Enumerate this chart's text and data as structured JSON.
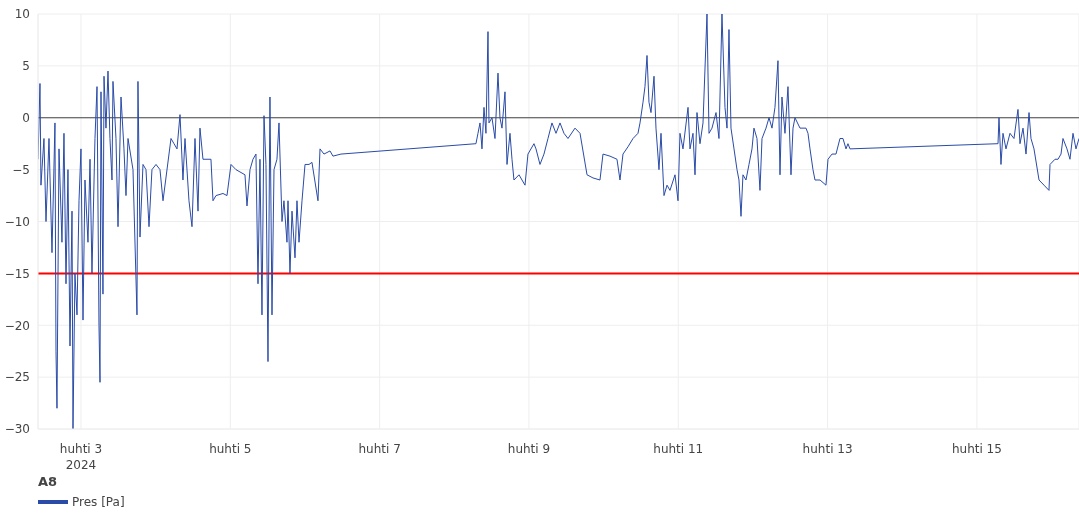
{
  "chart_data": {
    "type": "line",
    "legend_title": "A8",
    "legend": "bottom left",
    "grid": true,
    "marker": "none",
    "line_style": "solid",
    "xlim": [
      "2024-04-02T10:11",
      "2024-04-16T08:49"
    ],
    "xticks": [
      {
        "value": "2024-04-03",
        "label": "huhti 3\n2024"
      },
      {
        "value": "2024-04-05",
        "label": "huhti 5"
      },
      {
        "value": "2024-04-07",
        "label": "huhti 7"
      },
      {
        "value": "2024-04-09",
        "label": "huhti 9"
      },
      {
        "value": "2024-04-11",
        "label": "huhti 11"
      },
      {
        "value": "2024-04-13",
        "label": "huhti 13"
      },
      {
        "value": "2024-04-15",
        "label": "huhti 15"
      }
    ],
    "ylim": [
      -30,
      10
    ],
    "yticks": [
      -30,
      -25,
      -20,
      -15,
      -10,
      -5,
      0,
      5,
      10
    ],
    "ref_lines": [
      {
        "axis": "y",
        "value": 0,
        "color": "#444444"
      },
      {
        "axis": "y",
        "value": -15,
        "color": "#ff0000"
      }
    ],
    "series": [
      {
        "name": "Pres [Pa]",
        "color": "#2a4ba8",
        "x": [
          "2024-04-02T10:11",
          "2024-04-02T10:49",
          "2024-04-02T11:08",
          "2024-04-02T12:06",
          "2024-04-02T12:45",
          "2024-04-02T13:43",
          "2024-04-02T14:41",
          "2024-04-02T15:38",
          "2024-04-02T15:58",
          "2024-04-02T16:17",
          "2024-04-02T16:56",
          "2024-04-02T17:53",
          "2024-04-02T18:32",
          "2024-04-02T19:11",
          "2024-04-02T19:49",
          "2024-04-02T20:28",
          "2024-04-02T21:07",
          "2024-04-02T21:26",
          "2024-04-02T22:04",
          "2024-04-02T22:43",
          "2024-04-02T23:22",
          "2024-04-03T00:00",
          "2024-04-03T00:39",
          "2024-04-03T01:17",
          "2024-04-03T02:15",
          "2024-04-03T02:54",
          "2024-04-03T03:32",
          "2024-04-03T04:30",
          "2024-04-03T05:09",
          "2024-04-03T05:47",
          "2024-04-03T06:07",
          "2024-04-03T06:26",
          "2024-04-03T07:04",
          "2024-04-03T07:24",
          "2024-04-03T08:02",
          "2024-04-03T08:41",
          "2024-04-03T09:19",
          "2024-04-03T09:58",
          "2024-04-03T10:17",
          "2024-04-03T11:15",
          "2024-04-03T11:54",
          "2024-04-03T12:52",
          "2024-04-03T13:49",
          "2024-04-03T14:28",
          "2024-04-03T15:07",
          "2024-04-03T16:43",
          "2024-04-03T18:00",
          "2024-04-03T18:19",
          "2024-04-03T18:58",
          "2024-04-03T19:56",
          "2024-04-03T20:54",
          "2024-04-03T21:52",
          "2024-04-03T22:49",
          "2024-04-04T00:07",
          "2024-04-04T01:24",
          "2024-04-04T02:22",
          "2024-04-04T04:56",
          "2024-04-04T05:54",
          "2024-04-04T06:52",
          "2024-04-04T07:50",
          "2024-04-04T08:47",
          "2024-04-04T09:26",
          "2024-04-04T10:43",
          "2024-04-04T11:41",
          "2024-04-04T12:39",
          "2024-04-04T13:37",
          "2024-04-04T14:15",
          "2024-04-04T15:13",
          "2024-04-04T17:47",
          "2024-04-04T18:26",
          "2024-04-04T19:24",
          "2024-04-04T21:39",
          "2024-04-04T22:56",
          "2024-04-05T00:13",
          "2024-04-05T01:49",
          "2024-04-05T04:43",
          "2024-04-05T05:22",
          "2024-04-05T06:20",
          "2024-04-05T07:17",
          "2024-04-05T08:15",
          "2024-04-05T08:54",
          "2024-04-05T09:32",
          "2024-04-05T10:11",
          "2024-04-05T10:50",
          "2024-04-05T11:28",
          "2024-04-05T12:07",
          "2024-04-05T12:45",
          "2024-04-05T13:24",
          "2024-04-05T14:03",
          "2024-04-05T15:00",
          "2024-04-05T15:39",
          "2024-04-05T16:37",
          "2024-04-05T17:15",
          "2024-04-05T18:13",
          "2024-04-05T18:33",
          "2024-04-05T19:11",
          "2024-04-05T19:50",
          "2024-04-05T20:48",
          "2024-04-05T21:26",
          "2024-04-05T22:05",
          "2024-04-05T23:03",
          "2024-04-06T00:01",
          "2024-04-06T01:18",
          "2024-04-06T02:15",
          "2024-04-06T04:11",
          "2024-04-06T04:50",
          "2024-04-06T06:07",
          "2024-04-06T08:03",
          "2024-04-06T09:00",
          "2024-04-06T11:35",
          "2024-04-08T06:58",
          "2024-04-08T07:37",
          "2024-04-08T08:16",
          "2024-04-08T08:54",
          "2024-04-08T09:33",
          "2024-04-08T10:11",
          "2024-04-08T10:50",
          "2024-04-08T11:09",
          "2024-04-08T12:07",
          "2024-04-08T13:05",
          "2024-04-08T14:03",
          "2024-04-08T14:41",
          "2024-04-08T15:20",
          "2024-04-08T16:18",
          "2024-04-08T16:57",
          "2024-04-08T17:54",
          "2024-04-08T18:33",
          "2024-04-08T19:11",
          "2024-04-08T20:48",
          "2024-04-08T22:44",
          "2024-04-08T23:41",
          "2024-04-09T01:37",
          "2024-04-09T02:16",
          "2024-04-09T03:33",
          "2024-04-09T04:50",
          "2024-04-09T06:07",
          "2024-04-09T07:24",
          "2024-04-09T08:42",
          "2024-04-09T09:59",
          "2024-04-09T11:16",
          "2024-04-09T12:33",
          "2024-04-09T14:48",
          "2024-04-09T16:25",
          "2024-04-09T18:40",
          "2024-04-09T20:35",
          "2024-04-09T22:50",
          "2024-04-09T23:48",
          "2024-04-10T02:03",
          "2024-04-10T04:18",
          "2024-04-10T05:16",
          "2024-04-10T06:14",
          "2024-04-10T07:50",
          "2024-04-10T09:27",
          "2024-04-10T11:03",
          "2024-04-10T11:42",
          "2024-04-10T12:40",
          "2024-04-10T13:18",
          "2024-04-10T13:57",
          "2024-04-10T14:35",
          "2024-04-10T15:14",
          "2024-04-10T16:12",
          "2024-04-10T16:50",
          "2024-04-10T17:48",
          "2024-04-10T18:27",
          "2024-04-10T19:25",
          "2024-04-10T20:23",
          "2024-04-10T21:20",
          "2024-04-10T22:57",
          "2024-04-10T23:55",
          "2024-04-11T00:33",
          "2024-04-11T01:31",
          "2024-04-11T03:08",
          "2024-04-11T03:46",
          "2024-04-11T04:44",
          "2024-04-11T05:23",
          "2024-04-11T06:01",
          "2024-04-11T06:59",
          "2024-04-11T07:57",
          "2024-04-11T09:14",
          "2024-04-11T09:53",
          "2024-04-11T10:50",
          "2024-04-11T12:08",
          "2024-04-11T13:05",
          "2024-04-11T14:03",
          "2024-04-11T15:01",
          "2024-04-11T15:40",
          "2024-04-11T16:18",
          "2024-04-11T16:57",
          "2024-04-11T17:55",
          "2024-04-11T18:53",
          "2024-04-11T19:31",
          "2024-04-11T20:10",
          "2024-04-11T20:48",
          "2024-04-11T21:46",
          "2024-04-11T22:44",
          "2024-04-11T23:42",
          "2024-04-12T00:20",
          "2024-04-12T01:18",
          "2024-04-12T02:16",
          "2024-04-12T02:55",
          "2024-04-12T04:12",
          "2024-04-12T05:10",
          "2024-04-12T06:08",
          "2024-04-12T07:05",
          "2024-04-12T08:03",
          "2024-04-12T08:42",
          "2024-04-12T09:20",
          "2024-04-12T10:18",
          "2024-04-12T11:16",
          "2024-04-12T12:14",
          "2024-04-12T12:53",
          "2024-04-12T13:31",
          "2024-04-12T15:08",
          "2024-04-12T17:03",
          "2024-04-12T17:42",
          "2024-04-12T18:21",
          "2024-04-12T19:18",
          "2024-04-12T19:57",
          "2024-04-12T21:34",
          "2024-04-12T23:29",
          "2024-04-13T00:08",
          "2024-04-13T01:25",
          "2024-04-13T02:42",
          "2024-04-13T03:59",
          "2024-04-13T04:57",
          "2024-04-13T05:55",
          "2024-04-13T06:33",
          "2024-04-13T07:12",
          "2024-04-15T06:47",
          "2024-04-15T07:06",
          "2024-04-15T07:44",
          "2024-04-15T08:23",
          "2024-04-15T09:21",
          "2024-04-15T10:38",
          "2024-04-15T11:55",
          "2024-04-15T13:12",
          "2024-04-15T13:51",
          "2024-04-15T14:49",
          "2024-04-15T15:47",
          "2024-04-15T16:45",
          "2024-04-15T17:23",
          "2024-04-15T18:21",
          "2024-04-15T19:58",
          "2024-04-15T21:34",
          "2024-04-15T23:10",
          "2024-04-15T23:30",
          "2024-04-16T01:06",
          "2024-04-16T02:04",
          "2024-04-16T03:02",
          "2024-04-16T03:40",
          "2024-04-16T04:57",
          "2024-04-16T05:55",
          "2024-04-16T06:53",
          "2024-04-16T07:51",
          "2024-04-16T08:49"
        ],
        "values": [
          -4,
          3.3,
          -6.5,
          -2,
          -10,
          -2,
          -13,
          -0.5,
          -22.5,
          -28,
          -3,
          -12,
          -1.5,
          -16,
          -5,
          -22,
          -9,
          -30,
          -15,
          -19,
          -8,
          -3,
          -19.5,
          -6,
          -12,
          -4,
          -15,
          -2,
          3,
          -20,
          -25.5,
          2.5,
          -17,
          4,
          -1,
          4.5,
          -2,
          -6,
          3.5,
          -2,
          -10.5,
          2,
          -3,
          -7.5,
          -2,
          -5,
          -19,
          3.5,
          -11.5,
          -4.5,
          -5,
          -10.5,
          -5,
          -4.5,
          -5,
          -8,
          -2,
          -2.5,
          -3,
          0.3,
          -6,
          -2,
          -8,
          -10.5,
          -2,
          -9,
          -1,
          -4,
          -4,
          -8,
          -7.5,
          -7.3,
          -7.5,
          -4.5,
          -5,
          -5.5,
          -8.5,
          -5,
          -4,
          -3.5,
          -16,
          -4,
          -19,
          0.2,
          -4.5,
          -23.5,
          2,
          -19,
          -5,
          -4,
          -0.5,
          -10,
          -8,
          -12,
          -8,
          -15,
          -9,
          -13.5,
          -8,
          -12,
          -8,
          -4.5,
          -4.5,
          -4.3,
          -8,
          -3,
          -3.5,
          -3.2,
          -3.7,
          -3.5,
          -2.5,
          -1.5,
          -0.5,
          -3,
          1,
          -1.5,
          8.3,
          -0.5,
          0,
          -2,
          4.3,
          0,
          -1,
          2.5,
          -4.5,
          -1.5,
          -4,
          -6,
          -5.5,
          -6.5,
          -3.5,
          -2.5,
          -3,
          -4.5,
          -3.5,
          -2,
          -0.5,
          -1.5,
          -0.5,
          -1.5,
          -2,
          -1,
          -1.5,
          -5.5,
          -5.8,
          -6,
          -3.5,
          -3.7,
          -4,
          -6,
          -3.5,
          -2.8,
          -2,
          -1.5,
          -0.5,
          1.5,
          3,
          6,
          1.5,
          0.5,
          4,
          -1,
          -5,
          -1.5,
          -7.5,
          -6.5,
          -7,
          -5.5,
          -8,
          -1.5,
          -3,
          1,
          -3,
          -1.5,
          -5.5,
          0.5,
          -2.5,
          -0.5,
          10,
          -1.5,
          -1,
          0.5,
          -2,
          10,
          1,
          -1,
          8.5,
          -1,
          -3,
          -5,
          -6,
          -9.5,
          -5.5,
          -6,
          -4.5,
          -3,
          -1,
          -2,
          -7,
          -2,
          -1,
          0,
          -1,
          1,
          5.5,
          -5.5,
          2,
          -1.5,
          3,
          -5.5,
          -1,
          0,
          -1,
          -1,
          -1.5,
          -3,
          -5,
          -6,
          -6,
          -6.5,
          -4,
          -3.5,
          -3.5,
          -2,
          -2,
          -3,
          -2.5,
          -3,
          -2.5,
          0,
          -4.5,
          -1.5,
          -3,
          -1.5,
          -2,
          0.8,
          -2.5,
          -1,
          -3.5,
          0.5,
          -2,
          -3,
          -6,
          -6.5,
          -7,
          -4.5,
          -4,
          -4,
          -3.5,
          -2,
          -3,
          -4,
          -1.5,
          -3,
          -2
        ]
      }
    ]
  }
}
